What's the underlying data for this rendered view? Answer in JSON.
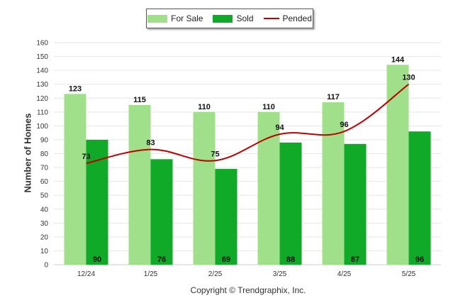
{
  "legend": {
    "for_sale": "For Sale",
    "sold": "Sold",
    "pended": "Pended"
  },
  "footer": {
    "copyright": "Copyright © Trendgraphix, Inc."
  },
  "colors": {
    "for_sale": "#a0e08a",
    "sold": "#10aa28",
    "pended": "#c00000",
    "grid": "#e6e6e6"
  },
  "chart_data": {
    "type": "bar",
    "ylabel": "Number of Homes",
    "ylim": [
      0,
      160
    ],
    "ytick_step": 10,
    "grid": true,
    "legend_position": "top-center",
    "categories": [
      "12/24",
      "1/25",
      "2/25",
      "3/25",
      "4/25",
      "5/25"
    ],
    "series": [
      {
        "name": "For Sale",
        "type": "bar",
        "values": [
          123,
          115,
          110,
          110,
          117,
          144
        ]
      },
      {
        "name": "Sold",
        "type": "bar",
        "values": [
          90,
          76,
          69,
          88,
          87,
          96
        ]
      },
      {
        "name": "Pended",
        "type": "line",
        "values": [
          73,
          83,
          75,
          94,
          96,
          130
        ]
      }
    ]
  }
}
